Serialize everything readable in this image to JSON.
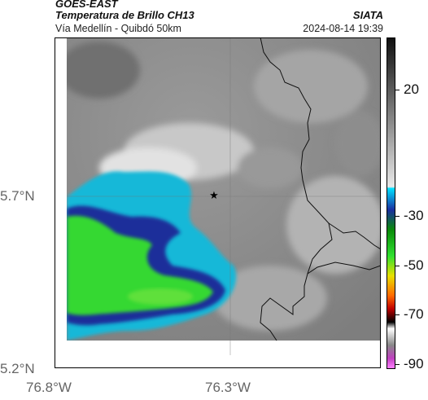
{
  "header": {
    "satellite": "GOES-EAST",
    "product": "Temperatura de Brillo CH13",
    "route": "Vía Medellín - Quibdó 50km",
    "agency": "SIATA",
    "datetime": "2024-08-14 19:39"
  },
  "axes": {
    "lat_labels": [
      "5.7°N",
      "5.2°N"
    ],
    "lon_labels": [
      "76.8°W",
      "76.3°W"
    ]
  },
  "colorbar": {
    "ticks": [
      "20",
      "-30",
      "-50",
      "-70",
      "-90"
    ]
  },
  "marker": {
    "symbol": "★",
    "name": "location-star"
  },
  "colors": {
    "cloud_gray": "#8a8a8a",
    "cyan": "#19b8d8",
    "dark_blue": "#1a2f9a",
    "green": "#35d832"
  }
}
